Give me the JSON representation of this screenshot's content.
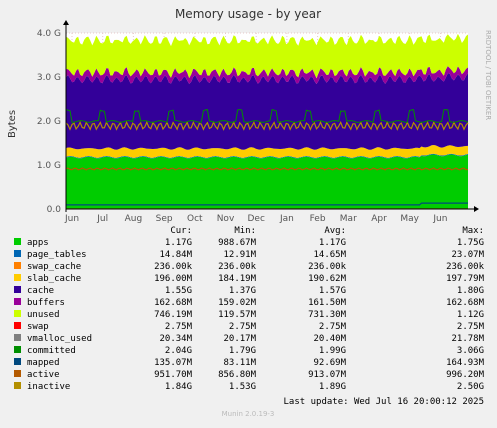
{
  "chart_data": {
    "type": "area",
    "title": "Memory usage - by year",
    "ylabel": "Bytes",
    "side_label": "RRDTOOL / TOBI OETIKER",
    "yticks": [
      {
        "value": 0,
        "label": "0.0"
      },
      {
        "value": 1.0,
        "label": "1.0 G"
      },
      {
        "value": 2.0,
        "label": "2.0 G"
      },
      {
        "value": 3.0,
        "label": "3.0 G"
      },
      {
        "value": 4.0,
        "label": "4.0 G"
      }
    ],
    "ylim": [
      0,
      4.0
    ],
    "yunit": "GB",
    "x_months": [
      "Jun",
      "Jul",
      "Aug",
      "Sep",
      "Oct",
      "Nov",
      "Dec",
      "Jan",
      "Feb",
      "Mar",
      "Apr",
      "May",
      "Jun"
    ],
    "colors": {
      "apps": "#00cc00",
      "page_tables": "#0066b3",
      "swap_cache": "#ff8000",
      "slab_cache": "#ffcc00",
      "cache": "#330099",
      "buffers": "#990099",
      "unused": "#ccff00",
      "swap": "#ff0000",
      "vmalloc_used": "#808080",
      "committed": "#008f00",
      "mapped": "#00487d",
      "active": "#b35a00",
      "inactive": "#b38f00"
    },
    "stack_avg_gb": {
      "apps": 1.17,
      "page_tables": 0.0146,
      "swap_cache": 0.00024,
      "slab_cache": 0.19,
      "cache": 1.57,
      "buffers": 0.16,
      "unused": 0.73
    },
    "line_avg_gb": {
      "committed": 1.99,
      "mapped": 0.093,
      "active": 0.91,
      "inactive": 1.89
    }
  },
  "table": {
    "headers": [
      "Cur:",
      "Min:",
      "Avg:",
      "Max:"
    ],
    "rows": [
      {
        "name": "apps",
        "color": "#00cc00",
        "cur": "1.17G",
        "min": "988.67M",
        "avg": "1.17G",
        "max": "1.75G"
      },
      {
        "name": "page_tables",
        "color": "#0066b3",
        "cur": "14.84M",
        "min": "12.91M",
        "avg": "14.65M",
        "max": "23.07M"
      },
      {
        "name": "swap_cache",
        "color": "#ff8000",
        "cur": "236.00k",
        "min": "236.00k",
        "avg": "236.00k",
        "max": "236.00k"
      },
      {
        "name": "slab_cache",
        "color": "#ffcc00",
        "cur": "196.00M",
        "min": "184.19M",
        "avg": "190.62M",
        "max": "197.79M"
      },
      {
        "name": "cache",
        "color": "#330099",
        "cur": "1.55G",
        "min": "1.37G",
        "avg": "1.57G",
        "max": "1.80G"
      },
      {
        "name": "buffers",
        "color": "#990099",
        "cur": "162.68M",
        "min": "159.02M",
        "avg": "161.50M",
        "max": "162.68M"
      },
      {
        "name": "unused",
        "color": "#ccff00",
        "cur": "746.19M",
        "min": "119.57M",
        "avg": "731.30M",
        "max": "1.12G"
      },
      {
        "name": "swap",
        "color": "#ff0000",
        "cur": "2.75M",
        "min": "2.75M",
        "avg": "2.75M",
        "max": "2.75M"
      },
      {
        "name": "vmalloc_used",
        "color": "#808080",
        "cur": "20.34M",
        "min": "20.17M",
        "avg": "20.40M",
        "max": "21.78M"
      },
      {
        "name": "committed",
        "color": "#008f00",
        "cur": "2.04G",
        "min": "1.79G",
        "avg": "1.99G",
        "max": "3.06G"
      },
      {
        "name": "mapped",
        "color": "#00487d",
        "cur": "135.07M",
        "min": "83.11M",
        "avg": "92.69M",
        "max": "164.93M"
      },
      {
        "name": "active",
        "color": "#b35a00",
        "cur": "951.70M",
        "min": "856.80M",
        "avg": "913.07M",
        "max": "996.20M"
      },
      {
        "name": "inactive",
        "color": "#b38f00",
        "cur": "1.84G",
        "min": "1.53G",
        "avg": "1.89G",
        "max": "2.50G"
      }
    ],
    "last_update": "Last update: Wed Jul 16 20:00:12 2025"
  },
  "footer": "Munin 2.0.19-3"
}
